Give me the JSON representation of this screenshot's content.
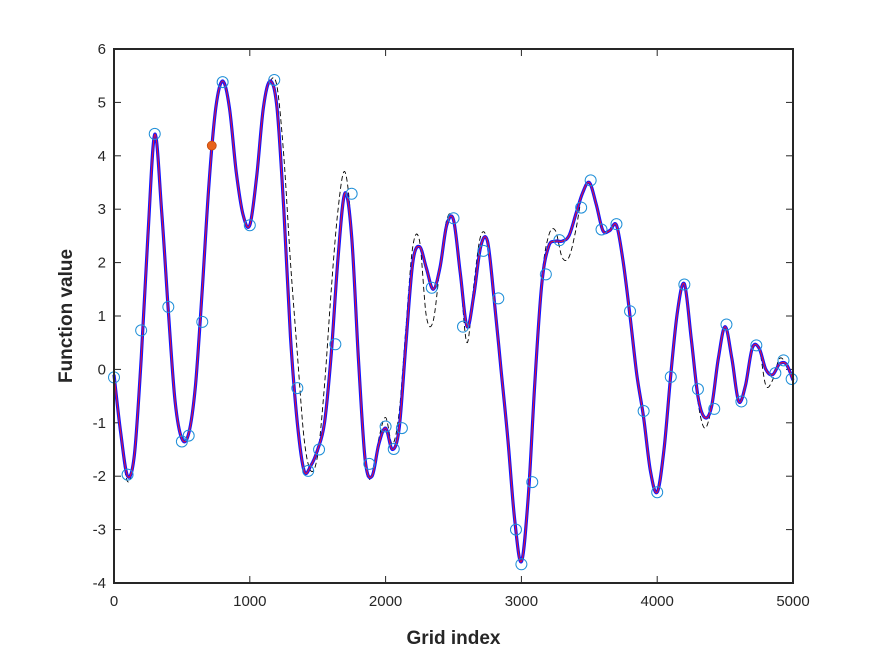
{
  "chart_data": {
    "type": "line",
    "title": "",
    "xlabel": "Grid index",
    "ylabel": "Function value",
    "xlim": [
      0,
      5000
    ],
    "ylim": [
      -4,
      6
    ],
    "xticks": [
      0,
      1000,
      2000,
      3000,
      4000,
      5000
    ],
    "yticks": [
      -4,
      -3,
      -2,
      -1,
      0,
      1,
      2,
      3,
      4,
      5,
      6
    ],
    "grid": false,
    "legend": "none",
    "colors": {
      "thick_line": "#1515ff",
      "thin_line": "#e0143c",
      "dashed_line": "#000000",
      "circles": "#1f8fd8",
      "highlight_point": "#e8631a",
      "axes": "#262626"
    },
    "series": [
      {
        "style": "thick-blue-line",
        "x": [
          0,
          50,
          100,
          150,
          200,
          250,
          300,
          350,
          400,
          450,
          500,
          550,
          600,
          650,
          700,
          750,
          800,
          850,
          900,
          950,
          1000,
          1050,
          1100,
          1150,
          1200,
          1250,
          1300,
          1350,
          1400,
          1450,
          1500,
          1550,
          1600,
          1650,
          1700,
          1750,
          1800,
          1850,
          1900,
          1950,
          2000,
          2050,
          2100,
          2150,
          2200,
          2250,
          2300,
          2350,
          2400,
          2450,
          2500,
          2550,
          2600,
          2650,
          2700,
          2750,
          2800,
          2850,
          2900,
          2950,
          3000,
          3050,
          3100,
          3150,
          3200,
          3250,
          3300,
          3350,
          3400,
          3450,
          3500,
          3550,
          3600,
          3650,
          3700,
          3750,
          3800,
          3850,
          3900,
          3950,
          4000,
          4050,
          4100,
          4150,
          4200,
          4250,
          4300,
          4350,
          4400,
          4450,
          4500,
          4550,
          4600,
          4650,
          4700,
          4750,
          4800,
          4850,
          4900,
          4950,
          5000
        ],
        "y": [
          -0.1,
          -1.2,
          -2.0,
          -1.6,
          0.2,
          2.5,
          4.4,
          3.0,
          1.1,
          -0.6,
          -1.3,
          -1.2,
          -0.3,
          1.5,
          3.5,
          4.9,
          5.4,
          4.9,
          3.7,
          2.9,
          2.7,
          3.6,
          4.9,
          5.4,
          4.9,
          3.0,
          0.6,
          -1.0,
          -1.9,
          -1.8,
          -1.5,
          -1.0,
          0.3,
          2.1,
          3.3,
          2.5,
          0.2,
          -1.7,
          -2.0,
          -1.4,
          -1.1,
          -1.5,
          -1.1,
          0.5,
          2.0,
          2.3,
          1.9,
          1.5,
          1.9,
          2.7,
          2.8,
          1.8,
          0.8,
          1.4,
          2.3,
          2.4,
          1.3,
          0.0,
          -1.3,
          -2.8,
          -3.6,
          -2.4,
          -0.2,
          1.6,
          2.3,
          2.4,
          2.4,
          2.5,
          2.9,
          3.3,
          3.5,
          3.1,
          2.6,
          2.6,
          2.7,
          2.0,
          1.0,
          -0.1,
          -0.9,
          -1.9,
          -2.3,
          -1.5,
          -0.1,
          1.1,
          1.6,
          0.6,
          -0.5,
          -0.9,
          -0.7,
          0.2,
          0.8,
          0.2,
          -0.6,
          -0.3,
          0.4,
          0.4,
          0.0,
          -0.1,
          0.1,
          0.1,
          -0.2
        ]
      },
      {
        "style": "thin-red-line",
        "x": [
          0,
          50,
          100,
          150,
          200,
          250,
          300,
          350,
          400,
          450,
          500,
          550,
          600,
          650,
          700,
          750,
          800,
          850,
          900,
          950,
          1000,
          1050,
          1100,
          1150,
          1200,
          1250,
          1300,
          1350,
          1400,
          1450,
          1500,
          1550,
          1600,
          1650,
          1700,
          1750,
          1800,
          1850,
          1900,
          1950,
          2000,
          2050,
          2100,
          2150,
          2200,
          2250,
          2300,
          2350,
          2400,
          2450,
          2500,
          2550,
          2600,
          2650,
          2700,
          2750,
          2800,
          2850,
          2900,
          2950,
          3000,
          3050,
          3100,
          3150,
          3200,
          3250,
          3300,
          3350,
          3400,
          3450,
          3500,
          3550,
          3600,
          3650,
          3700,
          3750,
          3800,
          3850,
          3900,
          3950,
          4000,
          4050,
          4100,
          4150,
          4200,
          4250,
          4300,
          4350,
          4400,
          4450,
          4500,
          4550,
          4600,
          4650,
          4700,
          4750,
          4800,
          4850,
          4900,
          4950,
          5000
        ],
        "y": [
          -0.1,
          -1.2,
          -2.0,
          -1.6,
          0.2,
          2.5,
          4.4,
          3.0,
          1.1,
          -0.6,
          -1.3,
          -1.2,
          -0.3,
          1.5,
          3.5,
          4.9,
          5.4,
          4.9,
          3.7,
          2.9,
          2.7,
          3.6,
          4.9,
          5.4,
          4.9,
          3.0,
          0.6,
          -1.0,
          -1.9,
          -1.8,
          -1.5,
          -1.0,
          0.3,
          2.1,
          3.3,
          2.5,
          0.2,
          -1.7,
          -2.0,
          -1.4,
          -1.1,
          -1.5,
          -1.1,
          0.5,
          2.0,
          2.3,
          1.9,
          1.5,
          1.9,
          2.7,
          2.8,
          1.8,
          0.8,
          1.4,
          2.3,
          2.4,
          1.3,
          0.0,
          -1.3,
          -2.8,
          -3.6,
          -2.4,
          -0.2,
          1.6,
          2.3,
          2.4,
          2.4,
          2.5,
          2.9,
          3.3,
          3.5,
          3.1,
          2.6,
          2.6,
          2.7,
          2.0,
          1.0,
          -0.1,
          -0.9,
          -1.9,
          -2.3,
          -1.5,
          -0.1,
          1.1,
          1.6,
          0.6,
          -0.5,
          -0.9,
          -0.7,
          0.2,
          0.8,
          0.2,
          -0.6,
          -0.3,
          0.4,
          0.4,
          0.0,
          -0.1,
          0.1,
          0.1,
          -0.2
        ]
      },
      {
        "style": "dashed-black-line",
        "x": [
          0,
          50,
          100,
          150,
          200,
          250,
          300,
          350,
          400,
          450,
          500,
          550,
          600,
          650,
          700,
          750,
          800,
          850,
          900,
          950,
          1000,
          1050,
          1100,
          1150,
          1200,
          1250,
          1300,
          1350,
          1400,
          1450,
          1500,
          1550,
          1600,
          1650,
          1700,
          1750,
          1800,
          1850,
          1900,
          1950,
          2000,
          2050,
          2100,
          2150,
          2200,
          2250,
          2300,
          2350,
          2400,
          2450,
          2500,
          2550,
          2600,
          2650,
          2700,
          2750,
          2800,
          2850,
          2900,
          2950,
          3000,
          3050,
          3100,
          3150,
          3200,
          3250,
          3300,
          3350,
          3400,
          3450,
          3500,
          3550,
          3600,
          3650,
          3700,
          3750,
          3800,
          3850,
          3900,
          3950,
          4000,
          4050,
          4100,
          4150,
          4200,
          4250,
          4300,
          4350,
          4400,
          4450,
          4500,
          4550,
          4600,
          4650,
          4700,
          4750,
          4800,
          4850,
          4900,
          4950,
          5000
        ],
        "y": [
          -0.1,
          -1.3,
          -2.1,
          -1.6,
          0.2,
          2.5,
          4.4,
          3.0,
          1.1,
          -0.6,
          -1.3,
          -1.2,
          -0.3,
          1.5,
          3.5,
          4.9,
          5.4,
          4.9,
          3.7,
          2.9,
          2.7,
          3.6,
          4.9,
          5.4,
          5.3,
          4.0,
          2.0,
          0.3,
          -1.3,
          -1.9,
          -1.6,
          -0.3,
          1.5,
          3.0,
          3.7,
          2.6,
          0.0,
          -1.8,
          -2.0,
          -1.3,
          -0.9,
          -1.4,
          -0.8,
          0.8,
          2.3,
          2.4,
          1.0,
          0.9,
          1.9,
          2.8,
          2.8,
          1.7,
          0.5,
          1.6,
          2.5,
          2.4,
          1.3,
          0.0,
          -1.3,
          -2.8,
          -3.6,
          -2.4,
          -0.2,
          1.7,
          2.5,
          2.6,
          2.1,
          2.1,
          2.6,
          3.3,
          3.5,
          3.1,
          2.6,
          2.6,
          2.7,
          2.0,
          1.0,
          -0.1,
          -0.9,
          -1.9,
          -2.3,
          -1.5,
          -0.1,
          1.1,
          1.6,
          0.6,
          -0.6,
          -1.1,
          -0.7,
          0.3,
          0.8,
          0.2,
          -0.6,
          -0.3,
          0.4,
          0.4,
          -0.3,
          -0.2,
          0.2,
          0.1,
          -0.2
        ]
      },
      {
        "style": "open-circle-markers",
        "x": [
          0,
          100,
          200,
          300,
          400,
          500,
          550,
          650,
          800,
          1000,
          1180,
          1350,
          1430,
          1510,
          1630,
          1750,
          1880,
          2000,
          2060,
          2120,
          2340,
          2500,
          2570,
          2720,
          2830,
          2960,
          3000,
          3080,
          3180,
          3280,
          3440,
          3510,
          3590,
          3700,
          3800,
          3900,
          4000,
          4100,
          4200,
          4300,
          4420,
          4510,
          4620,
          4730,
          4870,
          4930,
          4990
        ],
        "y": [
          -0.15,
          -1.97,
          0.73,
          4.41,
          1.17,
          -1.35,
          -1.24,
          0.89,
          5.38,
          2.7,
          5.42,
          -0.35,
          -1.9,
          -1.5,
          0.47,
          3.29,
          -1.77,
          -1.07,
          -1.49,
          -1.1,
          1.53,
          2.83,
          0.8,
          2.22,
          1.33,
          -3.0,
          -3.65,
          -2.11,
          1.78,
          2.42,
          3.03,
          3.54,
          2.62,
          2.72,
          1.09,
          -0.78,
          -2.3,
          -0.14,
          1.59,
          -0.37,
          -0.74,
          0.84,
          -0.6,
          0.45,
          -0.07,
          0.17,
          -0.18
        ]
      },
      {
        "style": "filled-orange-marker",
        "x": [
          720
        ],
        "y": [
          4.19
        ]
      }
    ]
  }
}
